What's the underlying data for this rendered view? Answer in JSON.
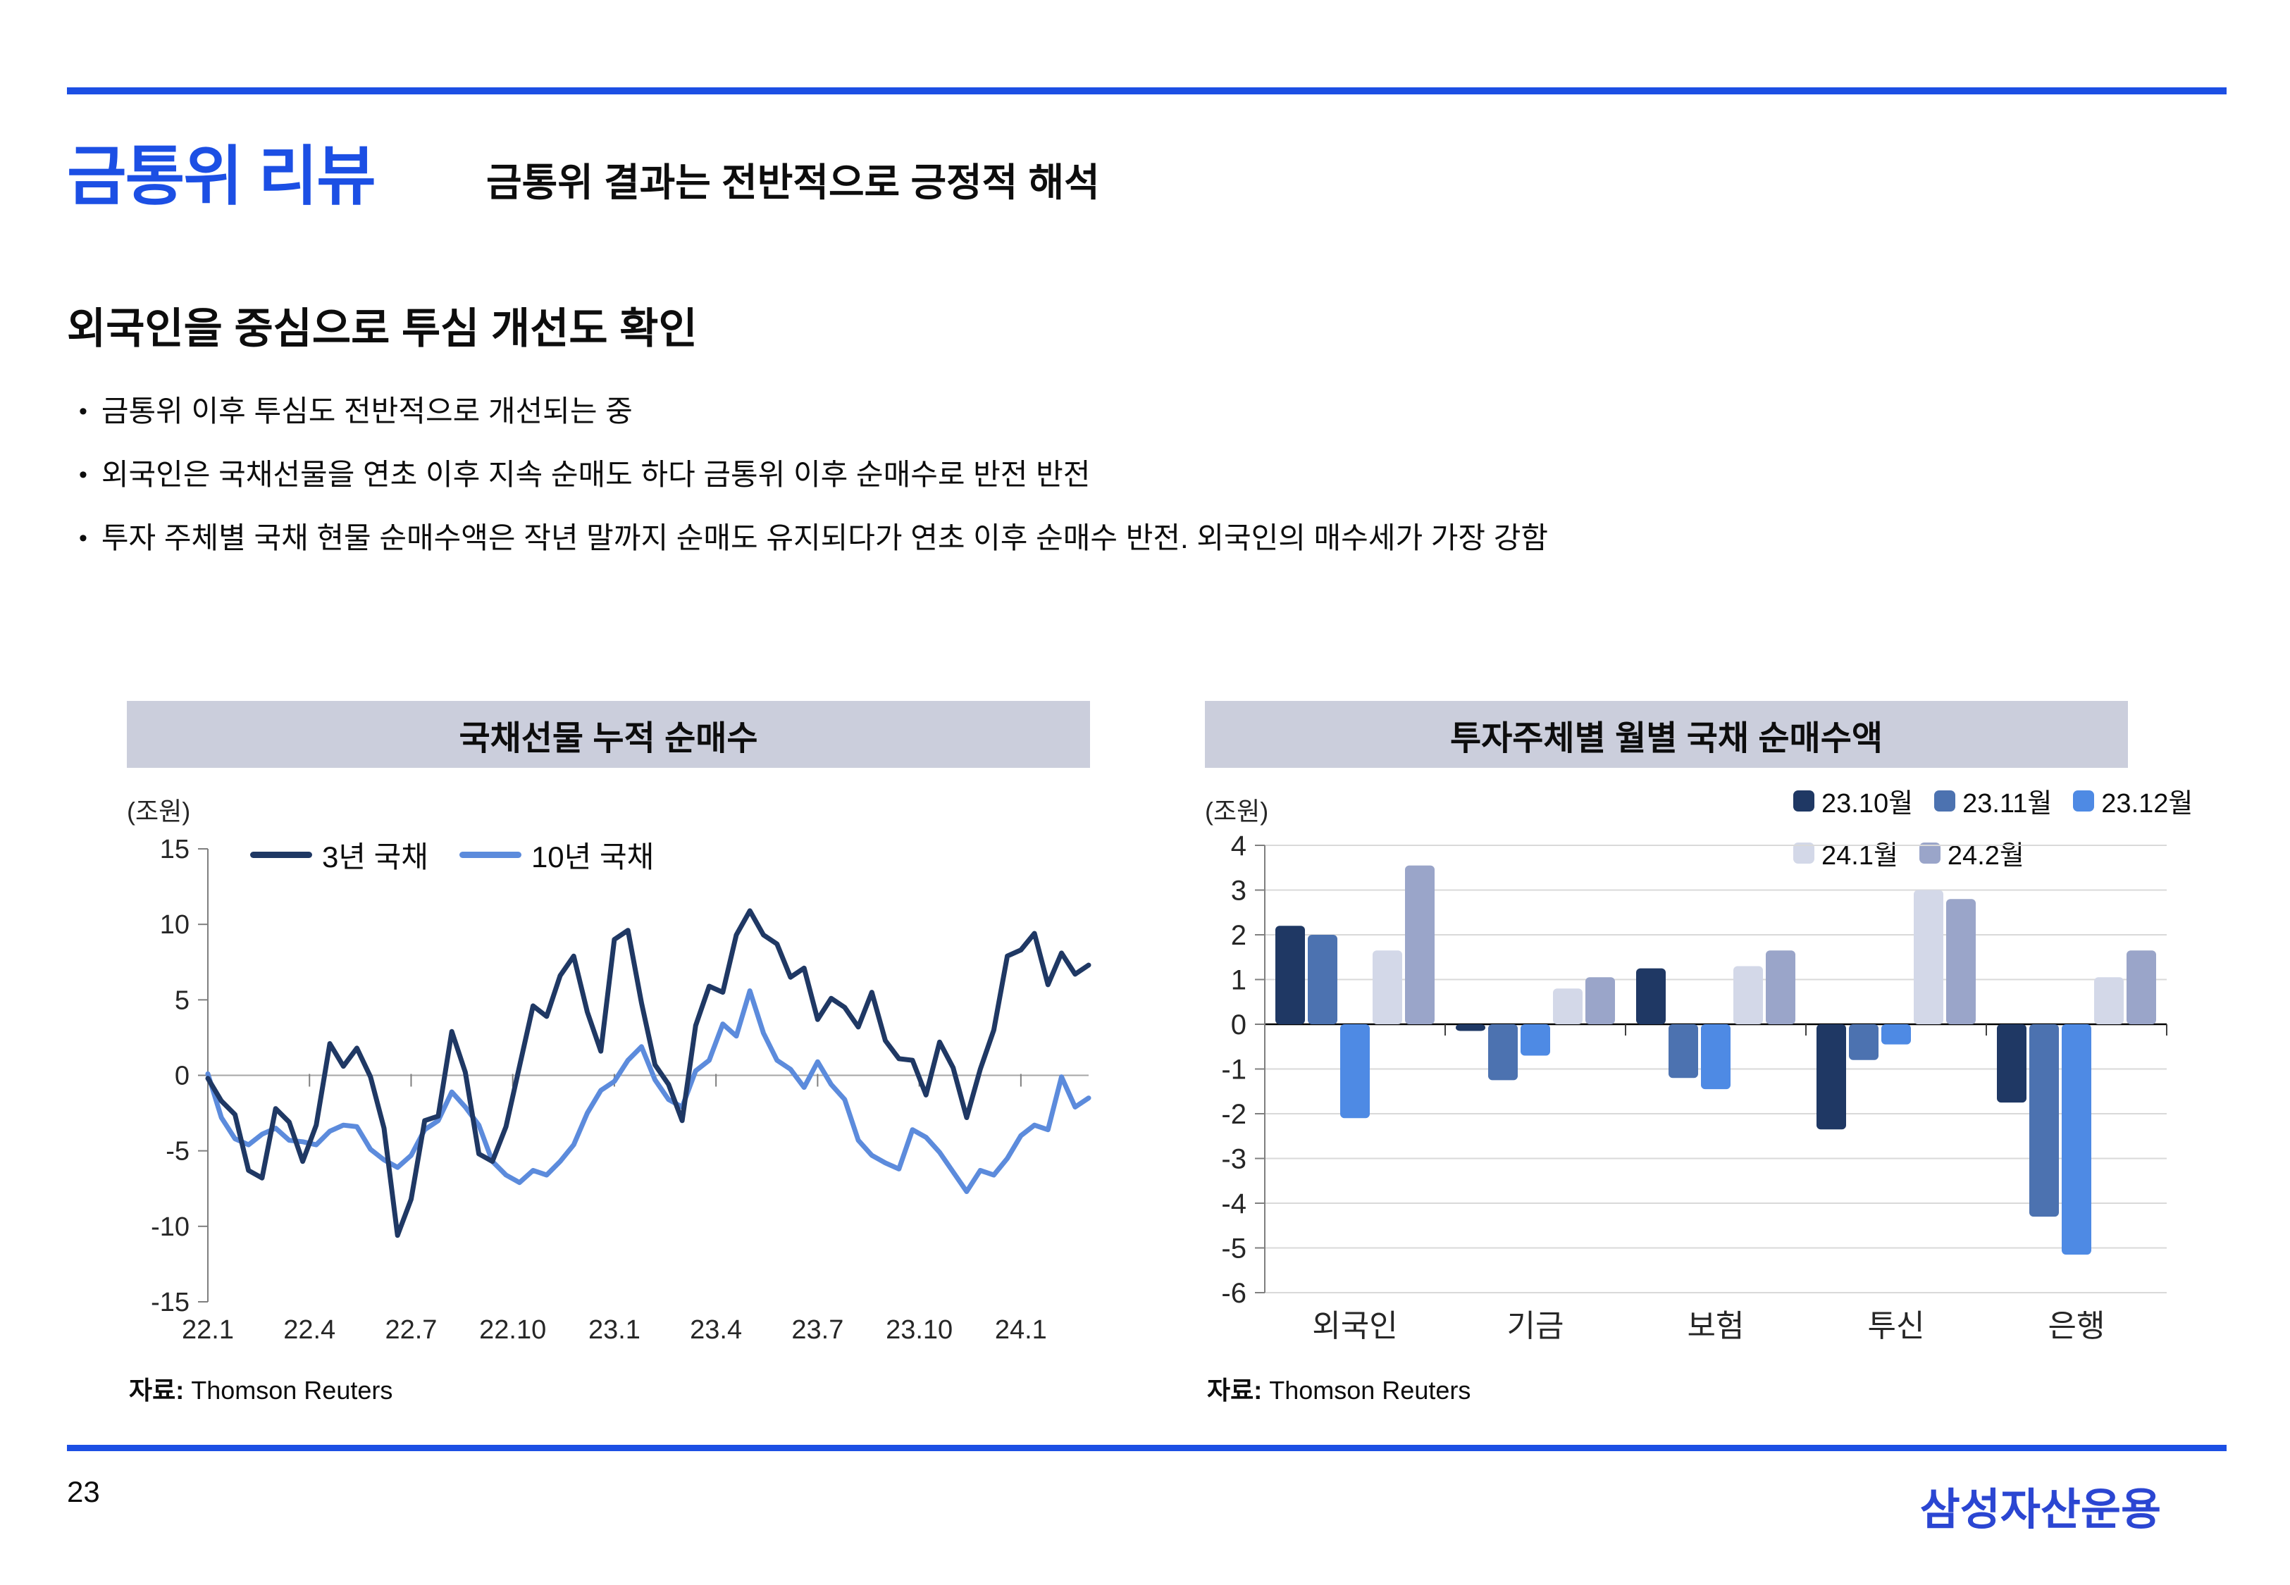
{
  "header": {
    "title": "금통위 리뷰",
    "subtitle": "금통위 결과는 전반적으로 긍정적 해석"
  },
  "section": {
    "heading": "외국인을 중심으로 투심 개선도 확인",
    "bullet_glyph": "•",
    "bullets": [
      "금통위 이후 투심도 전반적으로 개선되는 중",
      "외국인은 국채선물을 연초 이후 지속 순매도 하다 금통위 이후 순매수로 반전 반전",
      "투자 주체별 국채 현물 순매수액은 작년 말까지 순매도 유지되다가 연초 이후 순매수 반전. 외국인의 매수세가 가장 강함"
    ]
  },
  "source": {
    "label": "자료:",
    "text": "Thomson Reuters"
  },
  "footer": {
    "page_number": "23",
    "logo": "삼성자산운용"
  },
  "colors": {
    "accent_blue": "#1C4FE4",
    "logo_blue": "#2B46D2",
    "chart_title_bg": "#CBCEDC",
    "gridline": "#D9D9D9",
    "axis": "#7F7F7F",
    "zero_line_left": "#A6A6A6",
    "zero_line_right": "#000000"
  },
  "chart_data": [
    {
      "type": "line",
      "title": "국채선물 누적 순매수",
      "unit_label": "(조원)",
      "ylim": [
        -15,
        15
      ],
      "yticks": [
        15,
        10,
        5,
        0,
        -5,
        -10,
        -15
      ],
      "x_range_months": [
        0,
        26
      ],
      "x_tick_months": [
        0,
        3,
        6,
        9,
        12,
        15,
        18,
        21,
        24
      ],
      "x_tick_labels": [
        "22.1",
        "22.4",
        "22.7",
        "22.10",
        "23.1",
        "23.4",
        "23.7",
        "23.10",
        "24.1"
      ],
      "grid": false,
      "legend_position": "top-left",
      "source": "자료: Thomson Reuters",
      "series": [
        {
          "name": "3년 국채",
          "color": "#1F3864",
          "x_step_months": 0.4,
          "values": [
            -0.2,
            -1.7,
            -2.6,
            -6.3,
            -6.8,
            -2.2,
            -3.1,
            -5.7,
            -3.3,
            2.1,
            0.6,
            1.8,
            -0.1,
            -3.5,
            -10.6,
            -8.2,
            -3.0,
            -2.7,
            2.9,
            0.2,
            -5.2,
            -5.7,
            -3.4,
            0.6,
            4.6,
            3.9,
            6.6,
            7.9,
            4.2,
            1.6,
            9.0,
            9.6,
            4.8,
            0.7,
            -0.6,
            -3.0,
            3.3,
            5.9,
            5.5,
            9.3,
            10.9,
            9.3,
            8.7,
            6.5,
            7.1,
            3.7,
            5.1,
            4.5,
            3.2,
            5.5,
            2.3,
            1.1,
            1.0,
            -1.3,
            2.2,
            0.5,
            -2.8,
            0.4,
            3.0,
            7.9,
            8.3,
            9.4,
            6.0,
            8.1,
            6.7,
            7.3
          ]
        },
        {
          "name": "10년 국채",
          "color": "#5C8BDC",
          "x_step_months": 0.4,
          "values": [
            0.1,
            -2.8,
            -4.2,
            -4.6,
            -3.9,
            -3.5,
            -4.3,
            -4.4,
            -4.6,
            -3.7,
            -3.3,
            -3.4,
            -4.9,
            -5.6,
            -6.1,
            -5.3,
            -3.6,
            -3.0,
            -1.1,
            -2.1,
            -3.3,
            -5.7,
            -6.6,
            -7.1,
            -6.3,
            -6.6,
            -5.7,
            -4.6,
            -2.5,
            -1.0,
            -0.4,
            1.0,
            1.9,
            -0.3,
            -1.6,
            -2.1,
            0.3,
            1.0,
            3.4,
            2.6,
            5.6,
            2.8,
            1.0,
            0.4,
            -0.8,
            0.9,
            -0.6,
            -1.6,
            -4.3,
            -5.3,
            -5.8,
            -6.2,
            -3.6,
            -4.1,
            -5.1,
            -6.4,
            -7.7,
            -6.3,
            -6.6,
            -5.5,
            -4.0,
            -3.3,
            -3.6,
            -0.1,
            -2.1,
            -1.5
          ]
        }
      ]
    },
    {
      "type": "bar",
      "title": "투자주체별 월별 국채 순매수액",
      "unit_label": "(조원)",
      "ylim": [
        -6,
        4
      ],
      "yticks": [
        4,
        3,
        2,
        1,
        0,
        -1,
        -2,
        -3,
        -4,
        -5,
        -6
      ],
      "categories": [
        "외국인",
        "기금",
        "보험",
        "투신",
        "은행"
      ],
      "grid": true,
      "legend_position": "top-right",
      "source": "자료: Thomson Reuters",
      "series": [
        {
          "name": "23.10월",
          "color": "#1F3864",
          "values": [
            2.2,
            -0.15,
            1.25,
            -2.35,
            -1.75
          ]
        },
        {
          "name": "23.11월",
          "color": "#4C72B0",
          "values": [
            2.0,
            -1.25,
            -1.2,
            -0.8,
            -4.3
          ]
        },
        {
          "name": "23.12월",
          "color": "#4E8AE4",
          "values": [
            -2.1,
            -0.7,
            -1.45,
            -0.45,
            -5.15
          ]
        },
        {
          "name": "24.1월",
          "color": "#D3D8E8",
          "values": [
            1.65,
            0.8,
            1.3,
            3.0,
            1.05
          ]
        },
        {
          "name": "24.2월",
          "color": "#9AA5C9",
          "values": [
            3.55,
            1.05,
            1.65,
            2.8,
            1.65
          ]
        }
      ]
    }
  ]
}
